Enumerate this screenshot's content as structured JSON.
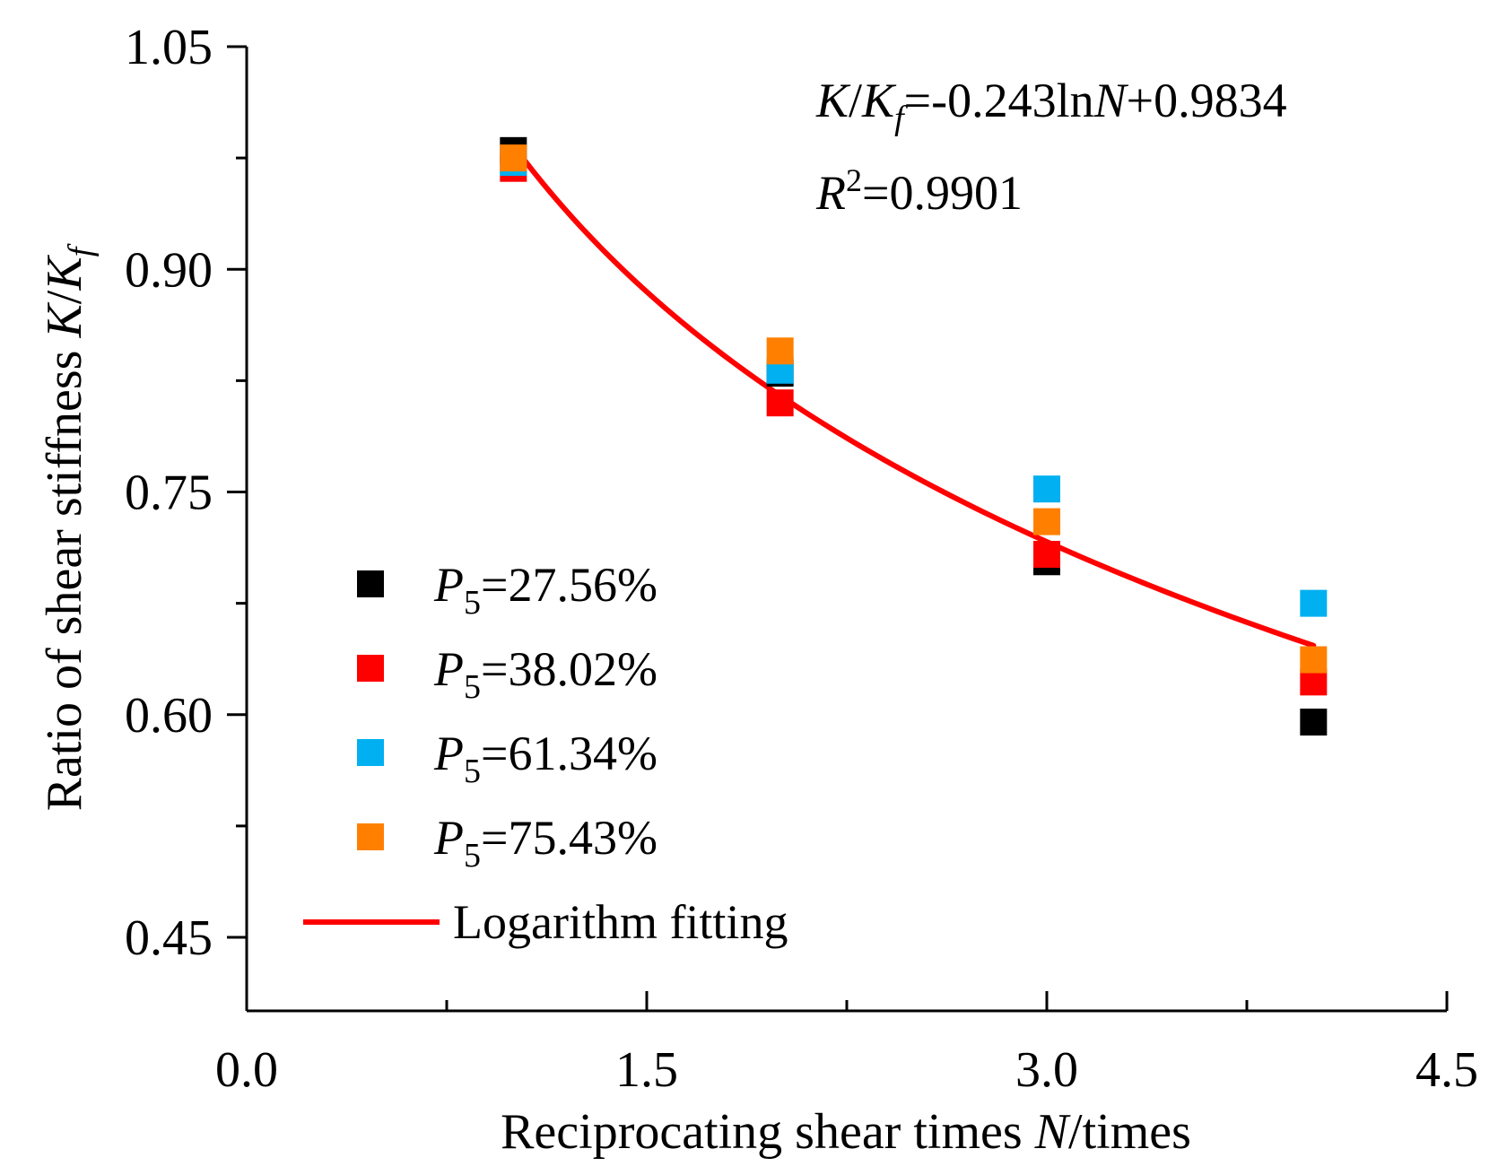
{
  "chart_data": {
    "type": "scatter",
    "title": "",
    "xlabel": {
      "main": "Reciprocating shear times ",
      "var": "N",
      "unit": "/times"
    },
    "ylabel": {
      "main": "Ratio of shear stiffness ",
      "var": "K",
      "slash": "/",
      "var2": "K",
      "sub": "f"
    },
    "xlim": [
      0,
      4.5
    ],
    "ylim": [
      0.4,
      1.05
    ],
    "xticks": [
      "0.0",
      "1.5",
      "3.0",
      "4.5"
    ],
    "yticks": [
      "0.45",
      "0.60",
      "0.75",
      "0.90",
      "1.05"
    ],
    "xtick_values": [
      0,
      1.5,
      3.0,
      4.5
    ],
    "ytick_values": [
      0.45,
      0.6,
      0.75,
      0.9,
      1.05
    ],
    "x": [
      1,
      2,
      3,
      4
    ],
    "series": [
      {
        "name": "27.56%",
        "color": "#000000",
        "values": [
          0.98,
          0.83,
          0.703,
          0.595
        ]
      },
      {
        "name": "38.02%",
        "color": "#ff0000",
        "values": [
          0.968,
          0.81,
          0.708,
          0.622
        ]
      },
      {
        "name": "61.34%",
        "color": "#00b0f0",
        "values": [
          0.972,
          0.832,
          0.752,
          0.675
        ]
      },
      {
        "name": "75.43%",
        "color": "#ff8000",
        "values": [
          0.975,
          0.845,
          0.73,
          0.637
        ]
      }
    ],
    "fit": {
      "name": "Logarithm fitting",
      "color": "#ff0000",
      "a": -0.243,
      "b": 0.9834,
      "x_range": [
        1,
        4
      ]
    },
    "legend_position": "lower-left",
    "legend_prefix": "P",
    "legend_prefix_sub": "5",
    "annotation": {
      "eq_k": "K",
      "eq_slash": "/",
      "eq_kf": "K",
      "eq_f": "f",
      "eq_rest1": "=-0.243ln",
      "eq_n": "N",
      "eq_rest2": "+0.9834",
      "r2_r": "R",
      "r2_sup": "2",
      "r2_rest": "=0.9901"
    }
  }
}
